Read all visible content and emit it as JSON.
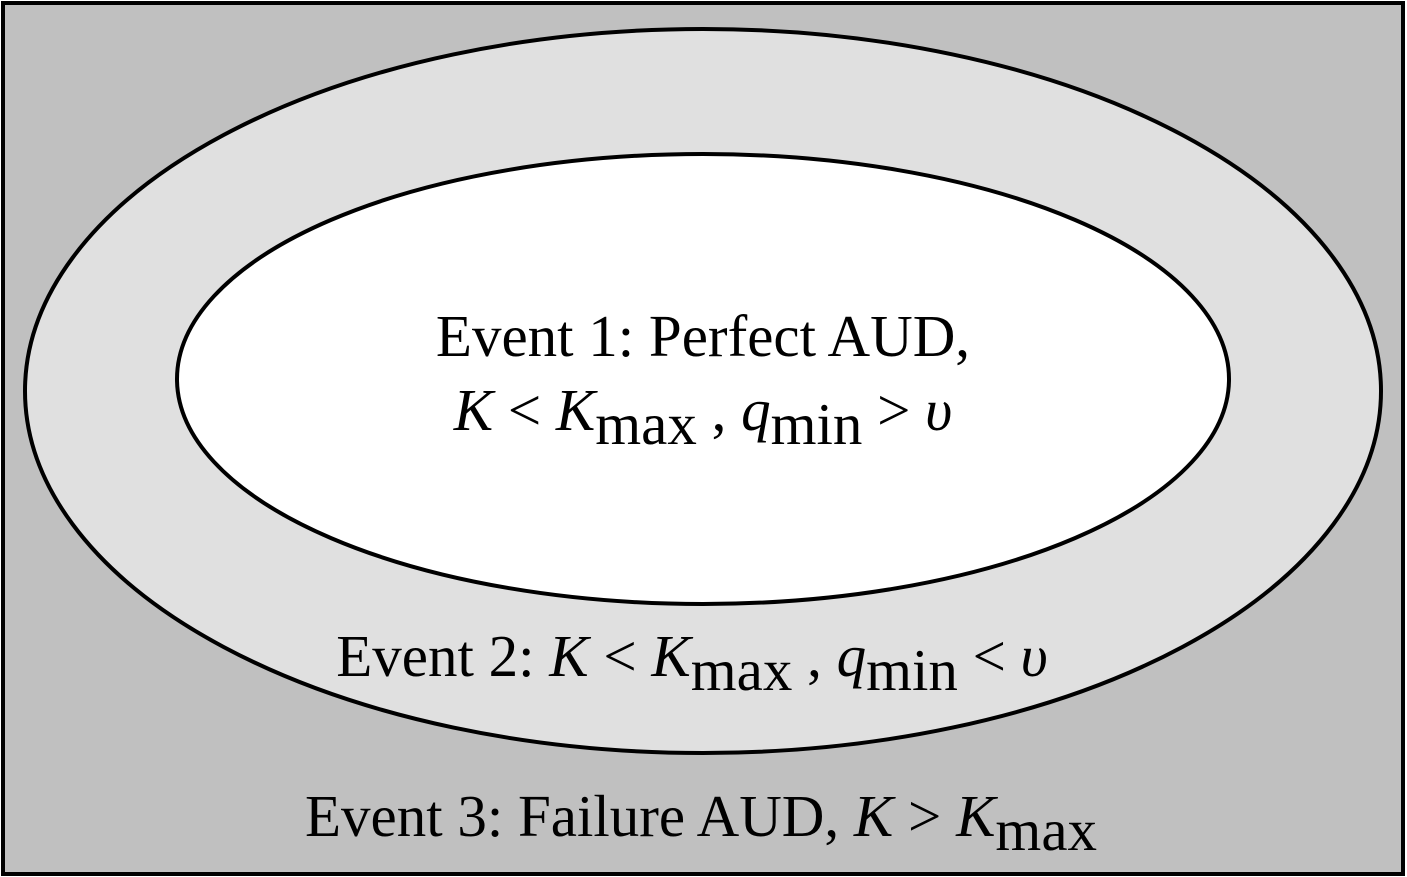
{
  "colors": {
    "outer_region": "#c0c0c0",
    "middle_region": "#e0e0e0",
    "inner_region": "#ffffff",
    "stroke": "#000000"
  },
  "event1": {
    "title": "Event 1:  Perfect AUD,",
    "cond_K": "K",
    "cond_lt": " < ",
    "cond_Kmax_base": "K",
    "cond_Kmax_sub": "max",
    "cond_sep": " , ",
    "cond_q_base": "q",
    "cond_q_sub": "min",
    "cond_gt": " > ",
    "cond_upsilon": "υ"
  },
  "event2": {
    "prefix": "Event 2: ",
    "cond_K": "K",
    "cond_lt": " < ",
    "cond_Kmax_base": "K",
    "cond_Kmax_sub": "max",
    "cond_sep": " , ",
    "cond_q_base": "q",
    "cond_q_sub": "min",
    "cond_lt2": " <  ",
    "cond_upsilon": "υ"
  },
  "event3": {
    "prefix": "Event 3: Failure AUD, ",
    "cond_K": "K",
    "cond_gt": " > ",
    "cond_Kmax_base": "K",
    "cond_Kmax_sub": "max"
  }
}
